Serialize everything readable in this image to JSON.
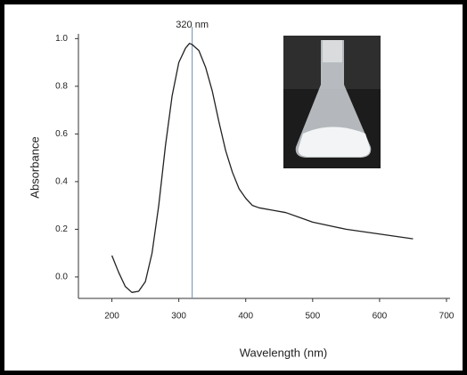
{
  "chart_data": {
    "type": "line",
    "x": [
      200,
      210,
      220,
      230,
      240,
      250,
      260,
      270,
      280,
      290,
      300,
      310,
      316,
      320,
      330,
      340,
      350,
      360,
      370,
      380,
      390,
      400,
      410,
      420,
      440,
      460,
      480,
      500,
      550,
      600,
      650
    ],
    "values": [
      0.09,
      0.02,
      -0.04,
      -0.065,
      -0.06,
      -0.02,
      0.1,
      0.3,
      0.55,
      0.76,
      0.9,
      0.96,
      0.98,
      0.975,
      0.95,
      0.88,
      0.78,
      0.65,
      0.53,
      0.44,
      0.37,
      0.33,
      0.3,
      0.29,
      0.28,
      0.27,
      0.25,
      0.23,
      0.2,
      0.18,
      0.16
    ],
    "color": "#222222",
    "xlabel": "Wavelength (nm)",
    "ylabel": "Absorbance",
    "xlim": [
      150,
      700
    ],
    "xticks": [
      200,
      300,
      400,
      500,
      600,
      700
    ],
    "ylim": [
      -0.09,
      1.02
    ],
    "yticks": [
      {
        "value": 0,
        "label": "0.0"
      },
      0.2,
      0.4,
      0.6,
      0.8,
      {
        "value": 1,
        "label": "1.0"
      }
    ],
    "grid": false,
    "annotation": {
      "x": 320,
      "label": "320 nm",
      "color": "#6b8fb0"
    }
  }
}
